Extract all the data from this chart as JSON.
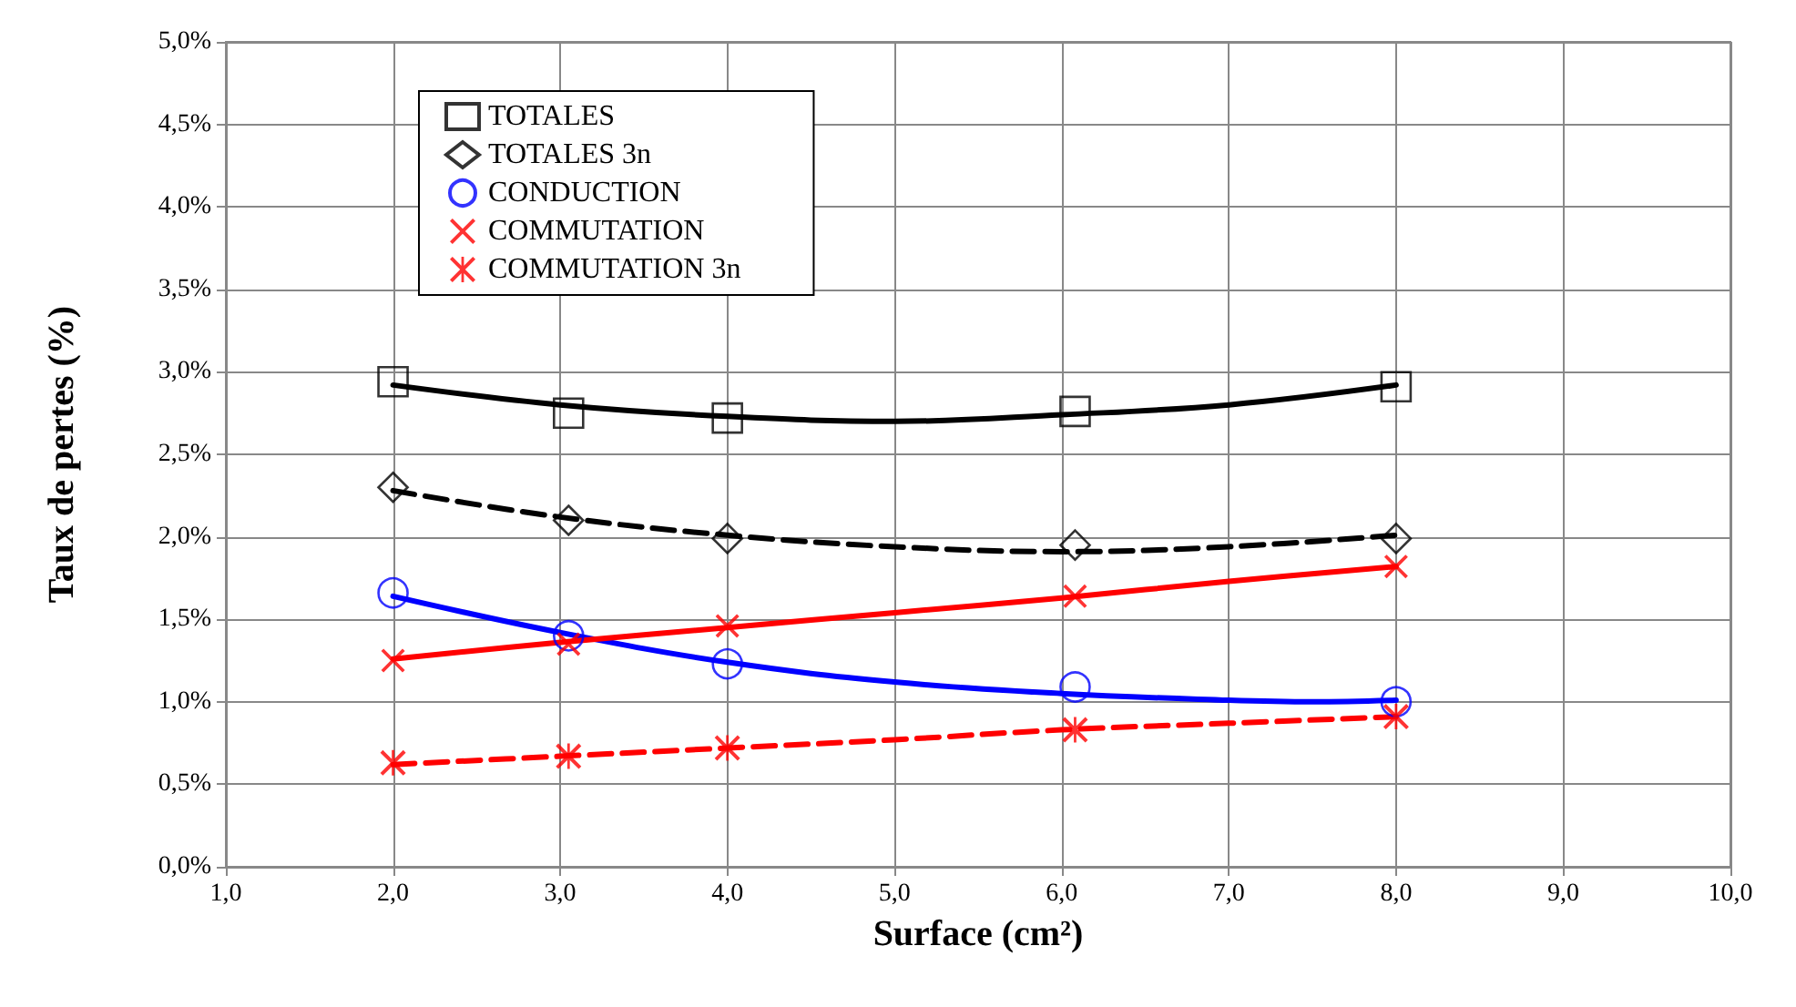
{
  "chart_data": {
    "type": "scatter",
    "xlabel": "Surface (cm²)",
    "ylabel": "Taux de pertes (%)",
    "x": [
      2.0,
      3.05,
      4.0,
      6.08,
      8.0
    ],
    "xlim": [
      1,
      10
    ],
    "xticks": [
      {
        "value": 1,
        "label": "1,0"
      },
      {
        "value": 2,
        "label": "2,0"
      },
      {
        "value": 3,
        "label": "3,0"
      },
      {
        "value": 4,
        "label": "4,0"
      },
      {
        "value": 5,
        "label": "5,0"
      },
      {
        "value": 6,
        "label": "6,0"
      },
      {
        "value": 7,
        "label": "7,0"
      },
      {
        "value": 8,
        "label": "8,0"
      },
      {
        "value": 9,
        "label": "9,0"
      },
      {
        "value": 10,
        "label": "10,0"
      }
    ],
    "ylim": [
      0,
      5
    ],
    "yticks": [
      {
        "value": 0,
        "label": "0,0%"
      },
      {
        "value": 0.5,
        "label": "0,5%"
      },
      {
        "value": 1,
        "label": "1,0%"
      },
      {
        "value": 1.5,
        "label": "1,5%"
      },
      {
        "value": 2,
        "label": "2,0%"
      },
      {
        "value": 2.5,
        "label": "2,5%"
      },
      {
        "value": 3,
        "label": "3,0%"
      },
      {
        "value": 3.5,
        "label": "3,5%"
      },
      {
        "value": 4,
        "label": "4,0%"
      },
      {
        "value": 4.5,
        "label": "4,5%"
      },
      {
        "value": 5,
        "label": "5,0%"
      }
    ],
    "grid": true,
    "legend": "top left",
    "series": [
      {
        "type": "line",
        "color": "#000000",
        "line_style": "solid",
        "marker": "none",
        "x": [
          2,
          3,
          4,
          5,
          6,
          7,
          8
        ],
        "values": [
          2.92,
          2.8,
          2.73,
          2.7,
          2.74,
          2.8,
          2.92
        ]
      },
      {
        "type": "line",
        "color": "#000000",
        "line_style": "dashed",
        "marker": "none",
        "x": [
          2,
          3,
          4,
          5,
          6,
          7,
          8
        ],
        "values": [
          2.28,
          2.12,
          2.01,
          1.94,
          1.91,
          1.94,
          2.01
        ]
      },
      {
        "type": "line",
        "color": "#0000ff",
        "line_style": "solid",
        "marker": "none",
        "x": [
          2,
          3,
          4,
          5,
          6,
          7,
          7.5,
          8
        ],
        "values": [
          1.64,
          1.42,
          1.24,
          1.12,
          1.05,
          1.01,
          1.0,
          1.01
        ]
      },
      {
        "type": "line",
        "color": "#ff0000",
        "line_style": "solid",
        "marker": "none",
        "x": [
          2,
          3,
          4,
          5,
          6,
          7,
          8
        ],
        "values": [
          1.26,
          1.36,
          1.45,
          1.54,
          1.63,
          1.73,
          1.82
        ]
      },
      {
        "type": "line",
        "color": "#ff0000",
        "line_style": "dashed",
        "marker": "none",
        "x": [
          2,
          3,
          4,
          5,
          6,
          7,
          8
        ],
        "values": [
          0.62,
          0.67,
          0.72,
          0.77,
          0.83,
          0.87,
          0.91
        ]
      },
      {
        "name": "TOTALES",
        "marker": "square",
        "color": "#000000",
        "values": [
          2.94,
          2.75,
          2.72,
          2.76,
          2.91
        ]
      },
      {
        "name": "TOTALES 3n",
        "marker": "diamond",
        "color": "#000000",
        "values": [
          2.3,
          2.1,
          1.99,
          1.95,
          1.99
        ]
      },
      {
        "name": "CONDUCTION",
        "marker": "circle",
        "color": "#0000ff",
        "values": [
          1.66,
          1.4,
          1.23,
          1.09,
          1.0
        ]
      },
      {
        "name": "COMMUTATION",
        "marker": "cross",
        "color": "#ff0000",
        "values": [
          1.25,
          1.35,
          1.46,
          1.64,
          1.82
        ]
      },
      {
        "name": "COMMUTATION 3n",
        "marker": "star",
        "color": "#ff0000",
        "values": [
          0.63,
          0.67,
          0.72,
          0.83,
          0.91
        ]
      }
    ]
  }
}
